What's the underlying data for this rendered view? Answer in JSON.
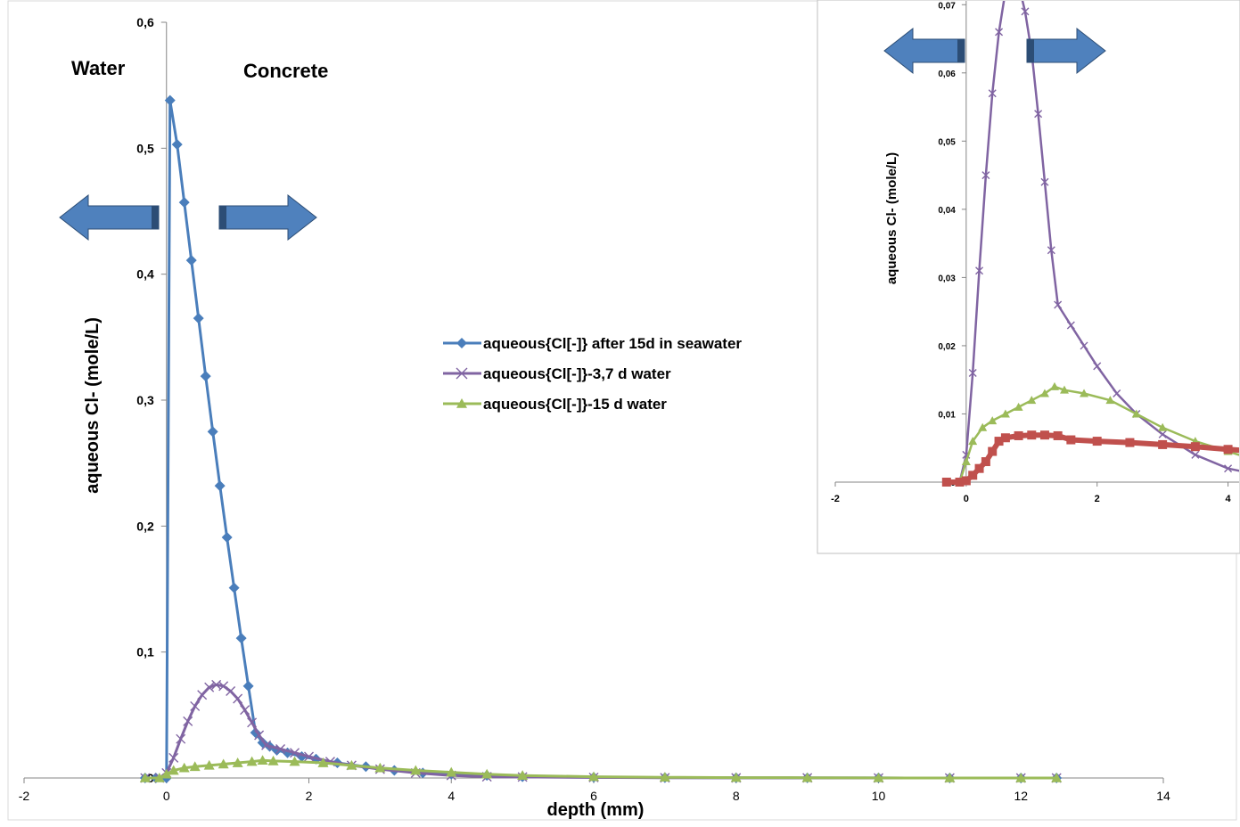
{
  "colors": {
    "seawater": "#4A7EBB",
    "water_3_7": "#8064A2",
    "water_15": "#9BBB59",
    "inset_red": "#C0504D",
    "arrow_fill": "#4F81BD",
    "arrow_dark": "#2C4D75"
  },
  "annotations": {
    "water": "Water",
    "concrete": "Concrete"
  },
  "chart_data": [
    {
      "id": "main",
      "type": "line",
      "title": "",
      "xlabel": "depth (mm)",
      "ylabel": "aqueous Cl- (mole/L)",
      "xlim": [
        -2,
        14
      ],
      "ylim": [
        0,
        0.6
      ],
      "x_ticks": [
        -2,
        0,
        2,
        4,
        6,
        8,
        10,
        12,
        14
      ],
      "y_ticks": [
        0,
        0.1,
        0.2,
        0.3,
        0.4,
        0.5,
        0.6
      ],
      "x_tick_labels": [
        "-2",
        "0",
        "2",
        "4",
        "6",
        "8",
        "10",
        "12",
        "14"
      ],
      "y_tick_labels": [
        "0",
        "0,1",
        "0,2",
        "0,3",
        "0,4",
        "0,5",
        "0,6"
      ],
      "grid": false,
      "legend_position": "middle-right",
      "series": [
        {
          "name": "aqueous{Cl[-]} after 15d in seawater",
          "marker": "diamond",
          "x": [
            -0.3,
            -0.15,
            0,
            0.05,
            0.15,
            0.25,
            0.35,
            0.45,
            0.55,
            0.65,
            0.75,
            0.85,
            0.95,
            1.05,
            1.15,
            1.25,
            1.35,
            1.45,
            1.55,
            1.7,
            1.9,
            2.1,
            2.4,
            2.8,
            3.2,
            3.6,
            4.0,
            4.5,
            5.0,
            6.0,
            7.0,
            8.0,
            9.0,
            10.0,
            11.0,
            12.0,
            12.5
          ],
          "y": [
            0,
            0,
            0,
            0.538,
            0.503,
            0.457,
            0.411,
            0.365,
            0.319,
            0.275,
            0.232,
            0.191,
            0.151,
            0.111,
            0.073,
            0.036,
            0.028,
            0.025,
            0.022,
            0.02,
            0.017,
            0.015,
            0.012,
            0.009,
            0.006,
            0.004,
            0.003,
            0.002,
            0.001,
            0.0005,
            0.0003,
            0.0002,
            0.0001,
            0.0001,
            0.0,
            0.0,
            0.0
          ]
        },
        {
          "name": "aqueous{Cl[-]}-3,7 d water",
          "marker": "x",
          "x": [
            -0.3,
            -0.1,
            0,
            0.1,
            0.2,
            0.3,
            0.4,
            0.5,
            0.6,
            0.7,
            0.8,
            0.9,
            1.0,
            1.1,
            1.2,
            1.3,
            1.4,
            1.6,
            1.8,
            2.0,
            2.3,
            2.6,
            3.0,
            3.5,
            4.0,
            4.5,
            5.0,
            6.0,
            7.0,
            8.0,
            9.0,
            10.0,
            11.0,
            12.0,
            12.5
          ],
          "y": [
            0,
            0,
            0.004,
            0.016,
            0.031,
            0.045,
            0.057,
            0.066,
            0.072,
            0.074,
            0.073,
            0.069,
            0.063,
            0.054,
            0.044,
            0.034,
            0.026,
            0.023,
            0.02,
            0.017,
            0.013,
            0.01,
            0.007,
            0.004,
            0.002,
            0.001,
            0.0008,
            0.0004,
            0.0002,
            0.0001,
            0.0001,
            0.0,
            0.0,
            0.0,
            0.0
          ]
        },
        {
          "name": "aqueous{Cl[-]}-15 d water",
          "marker": "triangle",
          "x": [
            -0.3,
            -0.1,
            0,
            0.1,
            0.25,
            0.4,
            0.6,
            0.8,
            1.0,
            1.2,
            1.35,
            1.5,
            1.8,
            2.2,
            2.6,
            3.0,
            3.5,
            4.0,
            4.5,
            5.0,
            6.0,
            7.0,
            8.0,
            9.0,
            10.0,
            11.0,
            12.0,
            12.5
          ],
          "y": [
            0,
            0,
            0.003,
            0.006,
            0.008,
            0.009,
            0.01,
            0.011,
            0.012,
            0.013,
            0.014,
            0.0135,
            0.013,
            0.012,
            0.01,
            0.008,
            0.006,
            0.0045,
            0.003,
            0.002,
            0.001,
            0.0006,
            0.0003,
            0.0002,
            0.0001,
            0.0,
            0.0,
            0.0
          ]
        }
      ]
    },
    {
      "id": "inset",
      "type": "line",
      "title": "",
      "xlabel": "",
      "ylabel": "aqueous Cl- (mole/L)",
      "xlim": [
        -2,
        5
      ],
      "ylim": [
        0,
        0.075
      ],
      "x_ticks": [
        -2,
        0,
        2,
        4
      ],
      "y_ticks": [
        0,
        0.01,
        0.02,
        0.03,
        0.04,
        0.05,
        0.06,
        0.07
      ],
      "x_tick_labels": [
        "-2",
        "0",
        "2",
        "4"
      ],
      "y_tick_labels": [
        "0",
        "0,01",
        "0,02",
        "0,03",
        "0,04",
        "0,05",
        "0,06",
        "0,07"
      ],
      "grid": false,
      "series": [
        {
          "marker": "x",
          "x": [
            -0.3,
            -0.1,
            0,
            0.1,
            0.2,
            0.3,
            0.4,
            0.5,
            0.6,
            0.7,
            0.8,
            0.9,
            1.0,
            1.1,
            1.2,
            1.3,
            1.4,
            1.6,
            1.8,
            2.0,
            2.3,
            2.6,
            3.0,
            3.5,
            4.0,
            4.5,
            5.0
          ],
          "y": [
            0,
            0,
            0.004,
            0.016,
            0.031,
            0.045,
            0.057,
            0.066,
            0.072,
            0.074,
            0.073,
            0.069,
            0.063,
            0.054,
            0.044,
            0.034,
            0.026,
            0.023,
            0.02,
            0.017,
            0.013,
            0.01,
            0.007,
            0.004,
            0.002,
            0.001,
            0.0008
          ]
        },
        {
          "marker": "triangle",
          "x": [
            -0.3,
            -0.1,
            0,
            0.1,
            0.25,
            0.4,
            0.6,
            0.8,
            1.0,
            1.2,
            1.35,
            1.5,
            1.8,
            2.2,
            2.6,
            3.0,
            3.5,
            4.0,
            4.5,
            5.0
          ],
          "y": [
            0,
            0,
            0.003,
            0.006,
            0.008,
            0.009,
            0.01,
            0.011,
            0.012,
            0.013,
            0.014,
            0.0135,
            0.013,
            0.012,
            0.01,
            0.008,
            0.006,
            0.0045,
            0.003,
            0.002
          ]
        },
        {
          "marker": "square",
          "x": [
            -0.3,
            -0.1,
            0,
            0.1,
            0.2,
            0.3,
            0.4,
            0.5,
            0.6,
            0.8,
            1.0,
            1.2,
            1.4,
            1.6,
            2.0,
            2.5,
            3.0,
            3.5,
            4.0,
            4.5,
            5.0
          ],
          "y": [
            0,
            0,
            0.0002,
            0.001,
            0.002,
            0.003,
            0.0045,
            0.006,
            0.0065,
            0.0068,
            0.0069,
            0.0069,
            0.0068,
            0.0062,
            0.006,
            0.0058,
            0.0055,
            0.0052,
            0.0048,
            0.0045,
            0.0042
          ]
        }
      ]
    }
  ]
}
